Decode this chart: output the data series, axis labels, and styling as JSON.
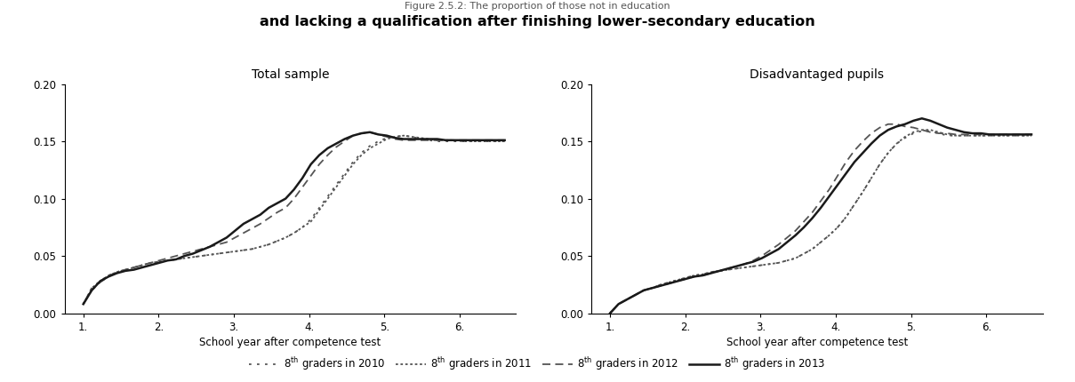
{
  "title_line1": "Figure 2.5.2: The proportion of those not in education",
  "title_line2": "and lacking a qualification after finishing lower-secondary education",
  "subtitle_left": "Total sample",
  "subtitle_right": "Disadvantaged pupils",
  "xlabel": "School year after competence test",
  "ylim": [
    0.0,
    0.2
  ],
  "yticks": [
    0.0,
    0.05,
    0.1,
    0.15,
    0.2
  ],
  "xticks": [
    1,
    2,
    3,
    4,
    5,
    6
  ],
  "xticklabels": [
    "1.",
    "2.",
    "3.",
    "4.",
    "5.",
    "6."
  ],
  "legend_labels": [
    "8$^{\\mathrm{th}}$ graders in 2010",
    "8$^{\\mathrm{th}}$ graders in 2011",
    "8$^{\\mathrm{th}}$ graders in 2012",
    "8$^{\\mathrm{th}}$ graders in 2013"
  ],
  "left_2013": [
    0.008,
    0.02,
    0.028,
    0.032,
    0.035,
    0.037,
    0.038,
    0.04,
    0.042,
    0.044,
    0.046,
    0.047,
    0.05,
    0.052,
    0.055,
    0.058,
    0.062,
    0.066,
    0.072,
    0.078,
    0.082,
    0.086,
    0.092,
    0.096,
    0.1,
    0.108,
    0.118,
    0.13,
    0.138,
    0.144,
    0.148,
    0.152,
    0.155,
    0.157,
    0.158,
    0.156,
    0.155,
    0.153,
    0.152,
    0.152,
    0.152,
    0.152,
    0.152,
    0.151,
    0.151,
    0.151,
    0.151,
    0.151,
    0.151,
    0.151,
    0.151
  ],
  "left_2012": [
    0.008,
    0.02,
    0.027,
    0.032,
    0.036,
    0.038,
    0.04,
    0.042,
    0.044,
    0.046,
    0.048,
    0.05,
    0.052,
    0.054,
    0.056,
    0.058,
    0.06,
    0.062,
    0.066,
    0.07,
    0.074,
    0.078,
    0.083,
    0.088,
    0.092,
    0.1,
    0.11,
    0.12,
    0.13,
    0.138,
    0.145,
    0.15,
    0.155,
    0.157,
    0.158,
    0.156,
    0.154,
    0.152,
    0.151,
    0.151,
    0.151,
    0.151,
    0.151,
    0.151,
    0.151,
    0.151,
    0.151,
    0.151,
    0.151,
    0.151,
    0.151
  ],
  "left_2011": [
    0.008,
    0.022,
    0.028,
    0.033,
    0.036,
    0.038,
    0.04,
    0.042,
    0.044,
    0.045,
    0.046,
    0.047,
    0.048,
    0.049,
    0.05,
    0.051,
    0.052,
    0.053,
    0.054,
    0.055,
    0.056,
    0.058,
    0.06,
    0.063,
    0.066,
    0.07,
    0.075,
    0.08,
    0.09,
    0.1,
    0.11,
    0.12,
    0.13,
    0.138,
    0.144,
    0.148,
    0.152,
    0.154,
    0.155,
    0.154,
    0.153,
    0.152,
    0.151,
    0.151,
    0.151,
    0.15,
    0.15,
    0.15,
    0.15,
    0.15,
    0.15
  ],
  "left_2010": [
    0.008,
    0.022,
    0.028,
    0.033,
    0.036,
    0.038,
    0.04,
    0.042,
    0.044,
    0.045,
    0.046,
    0.047,
    0.048,
    0.049,
    0.05,
    0.051,
    0.052,
    0.053,
    0.054,
    0.055,
    0.056,
    0.058,
    0.06,
    0.063,
    0.066,
    0.07,
    0.075,
    0.082,
    0.092,
    0.102,
    0.112,
    0.122,
    0.132,
    0.14,
    0.146,
    0.15,
    0.153,
    0.154,
    0.155,
    0.154,
    0.152,
    0.151,
    0.15,
    0.15,
    0.15,
    0.15,
    0.15,
    0.15,
    0.15,
    0.15,
    0.15
  ],
  "right_2013": [
    0.0,
    0.008,
    0.012,
    0.016,
    0.02,
    0.022,
    0.024,
    0.026,
    0.028,
    0.03,
    0.032,
    0.033,
    0.035,
    0.037,
    0.039,
    0.041,
    0.043,
    0.045,
    0.048,
    0.052,
    0.056,
    0.062,
    0.068,
    0.075,
    0.083,
    0.092,
    0.102,
    0.112,
    0.122,
    0.132,
    0.14,
    0.148,
    0.155,
    0.16,
    0.163,
    0.165,
    0.168,
    0.17,
    0.168,
    0.165,
    0.162,
    0.16,
    0.158,
    0.157,
    0.157,
    0.156,
    0.156,
    0.156,
    0.156,
    0.156,
    0.156
  ],
  "right_2012": [
    0.0,
    0.008,
    0.012,
    0.016,
    0.02,
    0.022,
    0.024,
    0.026,
    0.028,
    0.03,
    0.032,
    0.033,
    0.035,
    0.037,
    0.039,
    0.041,
    0.043,
    0.046,
    0.05,
    0.055,
    0.06,
    0.066,
    0.072,
    0.08,
    0.088,
    0.098,
    0.108,
    0.12,
    0.132,
    0.142,
    0.15,
    0.157,
    0.162,
    0.165,
    0.165,
    0.163,
    0.162,
    0.16,
    0.158,
    0.157,
    0.157,
    0.156,
    0.156,
    0.156,
    0.156,
    0.156,
    0.156,
    0.156,
    0.156,
    0.156,
    0.156
  ],
  "right_2011": [
    0.0,
    0.008,
    0.012,
    0.016,
    0.02,
    0.022,
    0.025,
    0.027,
    0.029,
    0.031,
    0.033,
    0.034,
    0.036,
    0.037,
    0.038,
    0.039,
    0.04,
    0.041,
    0.042,
    0.043,
    0.044,
    0.046,
    0.048,
    0.052,
    0.056,
    0.062,
    0.068,
    0.075,
    0.084,
    0.095,
    0.106,
    0.118,
    0.13,
    0.14,
    0.148,
    0.154,
    0.158,
    0.16,
    0.16,
    0.158,
    0.156,
    0.155,
    0.155,
    0.155,
    0.155,
    0.155,
    0.155,
    0.155,
    0.155,
    0.155,
    0.155
  ],
  "right_2010": [
    0.0,
    0.008,
    0.012,
    0.016,
    0.02,
    0.022,
    0.025,
    0.027,
    0.029,
    0.031,
    0.033,
    0.034,
    0.036,
    0.037,
    0.038,
    0.039,
    0.04,
    0.041,
    0.042,
    0.043,
    0.044,
    0.046,
    0.048,
    0.052,
    0.056,
    0.062,
    0.068,
    0.075,
    0.084,
    0.095,
    0.106,
    0.118,
    0.13,
    0.14,
    0.148,
    0.153,
    0.157,
    0.159,
    0.159,
    0.157,
    0.155,
    0.155,
    0.155,
    0.155,
    0.155,
    0.155,
    0.155,
    0.155,
    0.155,
    0.155,
    0.155
  ],
  "color_dark": "#1a1a1a",
  "color_mid": "#555555",
  "background_color": "#ffffff"
}
